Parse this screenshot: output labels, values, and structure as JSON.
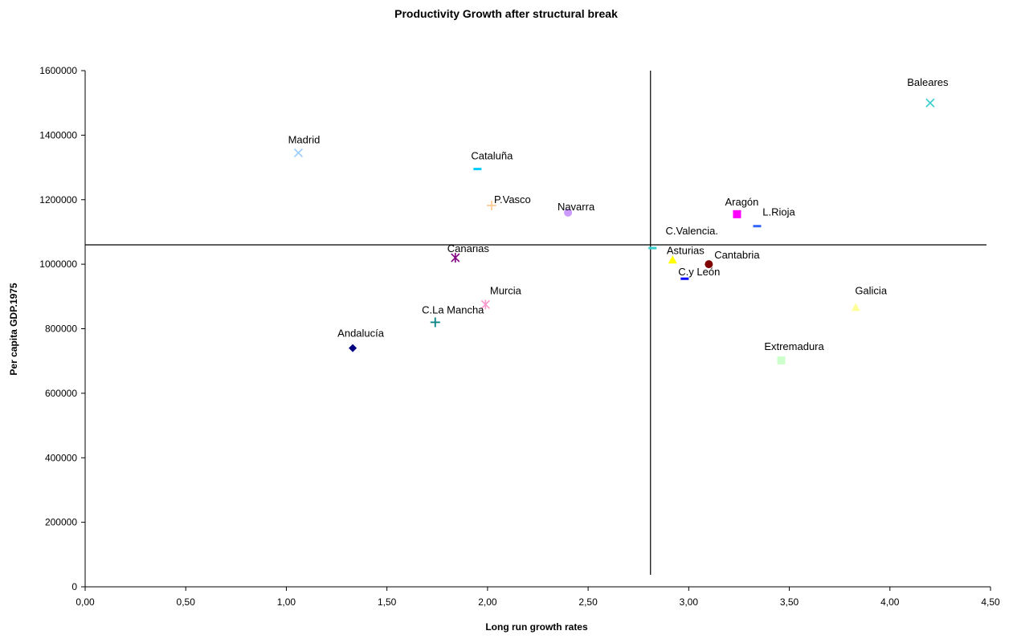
{
  "chart_data": {
    "type": "scatter",
    "title": "Productivity Growth after structural break",
    "xlabel": "Long run growth rates",
    "ylabel": "Per capita GDP.1975",
    "xlim": [
      0,
      4.5
    ],
    "ylim": [
      0,
      1600000
    ],
    "x_ticks": [
      0,
      0.5,
      1.0,
      1.5,
      2.0,
      2.5,
      3.0,
      3.5,
      4.0,
      4.5
    ],
    "x_tick_labels": [
      "0,00",
      "0,50",
      "1,00",
      "1,50",
      "2,00",
      "2,50",
      "3,00",
      "3,50",
      "4,00",
      "4,50"
    ],
    "y_ticks": [
      0,
      200000,
      400000,
      600000,
      800000,
      1000000,
      1200000,
      1400000,
      1600000
    ],
    "y_tick_labels": [
      "0",
      "200000",
      "400000",
      "600000",
      "800000",
      "1000000",
      "1200000",
      "1400000",
      "1600000"
    ],
    "grid": false,
    "legend": "none",
    "reference_lines": {
      "vertical_x": 2.81,
      "horizontal_y": 1060000
    },
    "points": [
      {
        "label": "Andalucía",
        "x": 1.33,
        "y": 740000,
        "marker": "diamond",
        "color": "#000080"
      },
      {
        "label": "Aragón",
        "x": 3.24,
        "y": 1155000,
        "marker": "square",
        "color": "#ff00ff"
      },
      {
        "label": "Asturias",
        "x": 2.92,
        "y": 1012000,
        "marker": "triangle",
        "color": "#ffff00"
      },
      {
        "label": "Baleares",
        "x": 4.2,
        "y": 1500000,
        "marker": "x",
        "color": "#33cccc"
      },
      {
        "label": "Canarias",
        "x": 1.84,
        "y": 1020000,
        "marker": "star",
        "color": "#800080"
      },
      {
        "label": "Cantabria",
        "x": 3.1,
        "y": 1000000,
        "marker": "circle",
        "color": "#800000"
      },
      {
        "label": "C.La Mancha",
        "x": 1.74,
        "y": 820000,
        "marker": "plus",
        "color": "#008080"
      },
      {
        "label": "C.y León",
        "x": 2.98,
        "y": 955000,
        "marker": "dash",
        "color": "#0000ff"
      },
      {
        "label": "Cataluña",
        "x": 1.95,
        "y": 1295000,
        "marker": "dash",
        "color": "#00ccff"
      },
      {
        "label": "C.Valencia.",
        "x": 2.82,
        "y": 1050000,
        "marker": "dash",
        "color": "#33cccc"
      },
      {
        "label": "Extremadura",
        "x": 3.46,
        "y": 702000,
        "marker": "square",
        "color": "#ccffcc"
      },
      {
        "label": "Galicia",
        "x": 3.83,
        "y": 865000,
        "marker": "triangle",
        "color": "#ffff99"
      },
      {
        "label": "Madrid",
        "x": 1.06,
        "y": 1345000,
        "marker": "x",
        "color": "#99ccff"
      },
      {
        "label": "Murcia",
        "x": 1.99,
        "y": 875000,
        "marker": "star",
        "color": "#ff99cc"
      },
      {
        "label": "Navarra",
        "x": 2.4,
        "y": 1160000,
        "marker": "circle",
        "color": "#cc99ff"
      },
      {
        "label": "P.Vasco",
        "x": 2.02,
        "y": 1182000,
        "marker": "plus",
        "color": "#ffcc99"
      },
      {
        "label": "L.Rioja",
        "x": 3.34,
        "y": 1118000,
        "marker": "dash",
        "color": "#3366ff"
      }
    ]
  }
}
